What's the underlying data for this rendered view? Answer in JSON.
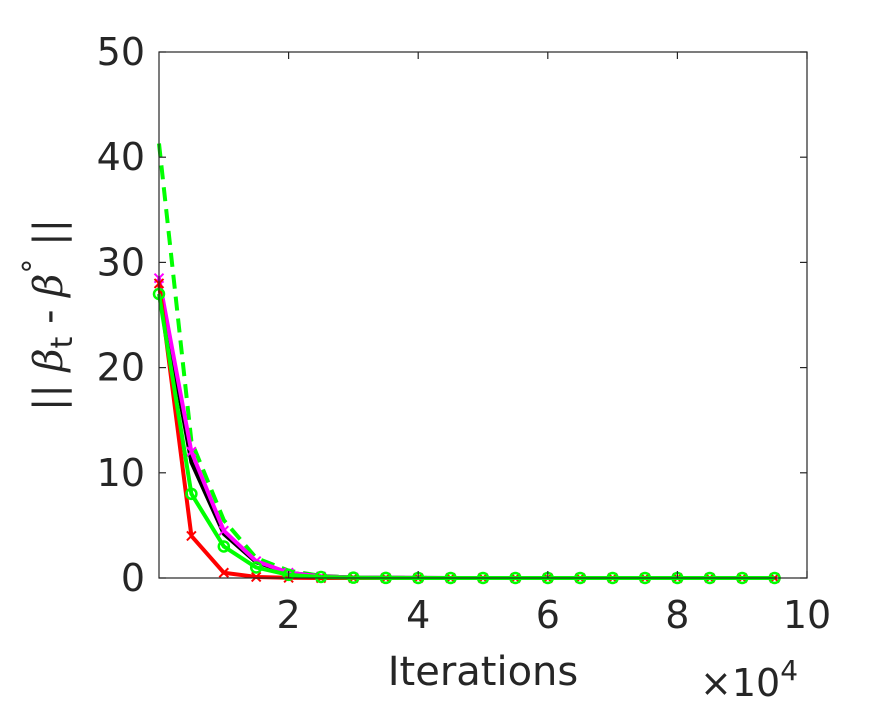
{
  "chart_data": {
    "type": "line",
    "title": "",
    "xlabel": "Iterations",
    "ylabel": "|| β_t - β° ||",
    "ylabel_parts": {
      "bars_left": "||",
      "beta": "β",
      "sub": "t",
      "minus": " - ",
      "beta2": "β",
      "sup": "°",
      "bars_right": "||"
    },
    "x_multiplier_label": {
      "times": "×10",
      "exp": "4"
    },
    "xlim": [
      0,
      10
    ],
    "ylim": [
      0,
      50
    ],
    "x_ticks": [
      2,
      4,
      6,
      8,
      10
    ],
    "x_tick_labels": [
      "2",
      "4",
      "6",
      "8",
      "10"
    ],
    "y_ticks": [
      0,
      10,
      20,
      30,
      40,
      50
    ],
    "y_tick_labels": [
      "0",
      "10",
      "20",
      "30",
      "40",
      "50"
    ],
    "grid": false,
    "series": [
      {
        "color": "#00ff00",
        "style": "dashed",
        "marker": "none",
        "x": [
          0,
          0.5,
          1,
          1.5,
          2,
          2.5,
          3,
          3.5,
          4,
          4.5,
          5,
          5.5,
          6,
          6.5,
          7,
          7.5,
          8,
          8.5,
          9,
          9.5
        ],
        "y": [
          41.3,
          13.0,
          5.5,
          1.9,
          0.7,
          0.2,
          0.05,
          0.02,
          0.01,
          0,
          0,
          0,
          0,
          0,
          0,
          0,
          0,
          0,
          0,
          0
        ]
      },
      {
        "color": "#000000",
        "style": "solid",
        "marker": "none",
        "x": [
          0,
          0.5,
          1,
          1.5,
          2,
          2.5,
          3,
          3.5,
          4,
          4.5,
          5,
          5.5,
          6,
          6.5,
          7,
          7.5,
          8,
          8.5,
          9,
          9.5
        ],
        "y": [
          28.0,
          11.0,
          4.2,
          1.5,
          0.5,
          0.15,
          0.05,
          0.02,
          0.01,
          0,
          0,
          0,
          0,
          0,
          0,
          0,
          0,
          0,
          0,
          0
        ]
      },
      {
        "color": "#ff00ff",
        "style": "solid",
        "marker": "x",
        "x": [
          0,
          0.5,
          1,
          1.5,
          2,
          2.5,
          3,
          3.5,
          4,
          4.5,
          5,
          5.5,
          6,
          6.5,
          7,
          7.5,
          8,
          8.5,
          9,
          9.5
        ],
        "y": [
          28.5,
          12.0,
          4.5,
          1.6,
          0.5,
          0.15,
          0.05,
          0.02,
          0.01,
          0,
          0,
          0,
          0,
          0,
          0,
          0,
          0,
          0,
          0,
          0
        ]
      },
      {
        "color": "#ff0000",
        "style": "solid",
        "marker": "x",
        "x": [
          0,
          0.5,
          1,
          1.5,
          2,
          2.5,
          3,
          3.5,
          4,
          4.5,
          5,
          5.5,
          6,
          6.5,
          7,
          7.5,
          8,
          8.5,
          9,
          9.5
        ],
        "y": [
          28.0,
          4.0,
          0.5,
          0.1,
          0.02,
          0,
          0,
          0,
          0,
          0,
          0,
          0,
          0,
          0,
          0,
          0,
          0,
          0,
          0,
          0
        ]
      },
      {
        "color": "#00ff00",
        "style": "solid",
        "marker": "circle",
        "x": [
          0,
          0.5,
          1,
          1.5,
          2,
          2.5,
          3,
          3.5,
          4,
          4.5,
          5,
          5.5,
          6,
          6.5,
          7,
          7.5,
          8,
          8.5,
          9,
          9.5
        ],
        "y": [
          27.0,
          8.0,
          3.0,
          1.0,
          0.3,
          0.1,
          0.03,
          0.01,
          0,
          0,
          0,
          0,
          0,
          0,
          0,
          0,
          0,
          0,
          0,
          0
        ]
      }
    ]
  }
}
